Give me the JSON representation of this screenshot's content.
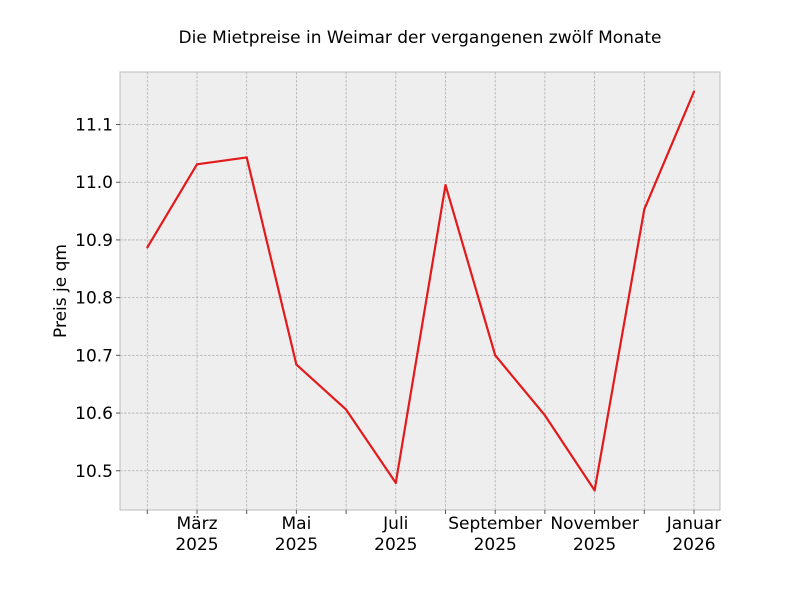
{
  "chart_data": {
    "type": "line",
    "title": "Die Mietpreise in Weimar der vergangenen zwölf Monate",
    "xlabel": "",
    "ylabel": "Preis je qm",
    "x": [
      "2025-02",
      "2025-03",
      "2025-04",
      "2025-05",
      "2025-06",
      "2025-07",
      "2025-08",
      "2025-09",
      "2025-10",
      "2025-11",
      "2025-12",
      "2026-01"
    ],
    "x_tick_labels": [
      {
        "month": "2025-03",
        "line1": "März",
        "line2": "2025"
      },
      {
        "month": "2025-05",
        "line1": "Mai",
        "line2": "2025"
      },
      {
        "month": "2025-07",
        "line1": "Juli",
        "line2": "2025"
      },
      {
        "month": "2025-09",
        "line1": "September",
        "line2": "2025"
      },
      {
        "month": "2025-11",
        "line1": "November",
        "line2": "2025"
      },
      {
        "month": "2026-01",
        "line1": "Januar",
        "line2": "2026"
      }
    ],
    "series": [
      {
        "values": [
          10.887,
          11.031,
          11.043,
          10.684,
          10.606,
          10.479,
          10.995,
          10.7,
          10.596,
          10.466,
          10.953,
          11.157
        ],
        "color": "#e31a1c"
      }
    ],
    "y_ticks": [
      "10.5",
      "10.6",
      "10.7",
      "10.8",
      "10.9",
      "11.0",
      "11.1"
    ],
    "ylim": [
      10.432,
      11.191
    ],
    "grid": true,
    "background": "#eeeeee",
    "grid_color": "#b0b0b0"
  }
}
